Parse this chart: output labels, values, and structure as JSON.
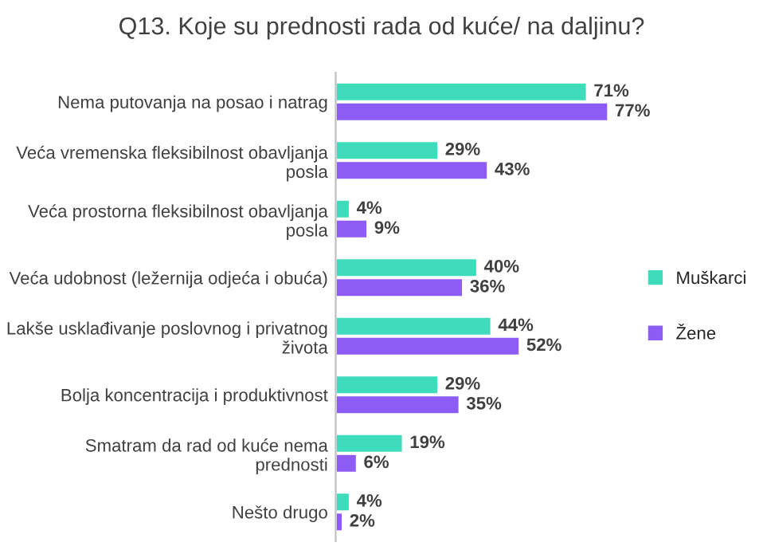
{
  "chart_data": {
    "type": "bar",
    "orientation": "horizontal",
    "title": "Q13. Koje su prednosti rada od kuće/ na daljinu?",
    "categories": [
      "Nema putovanja na posao i natrag",
      "Veća vremenska fleksibilnost obavljanja\nposla",
      "Veća prostorna fleksibilnost obavljanja\nposla",
      "Veća udobnost (ležernija odjeća i obuća)",
      "Lakše usklađivanje poslovnog i privatnog\nživota",
      "Bolja koncentracija i produktivnost",
      "Smatram da rad od kuće nema\nprednosti",
      "Nešto drugo"
    ],
    "series": [
      {
        "name": "Muškarci",
        "color": "#3fdcbc",
        "values": [
          71,
          29,
          4,
          40,
          44,
          29,
          19,
          4
        ],
        "value_labels": [
          "71%",
          "29%",
          "4%",
          "40%",
          "44%",
          "29%",
          "19%",
          "4%"
        ]
      },
      {
        "name": "Žene",
        "color": "#8d5cf6",
        "values": [
          77,
          43,
          9,
          36,
          52,
          35,
          6,
          2
        ],
        "value_labels": [
          "77%",
          "43%",
          "9%",
          "36%",
          "52%",
          "35%",
          "6%",
          "2%"
        ]
      }
    ],
    "tick_labels": "y",
    "legend": "right",
    "grid": false
  }
}
